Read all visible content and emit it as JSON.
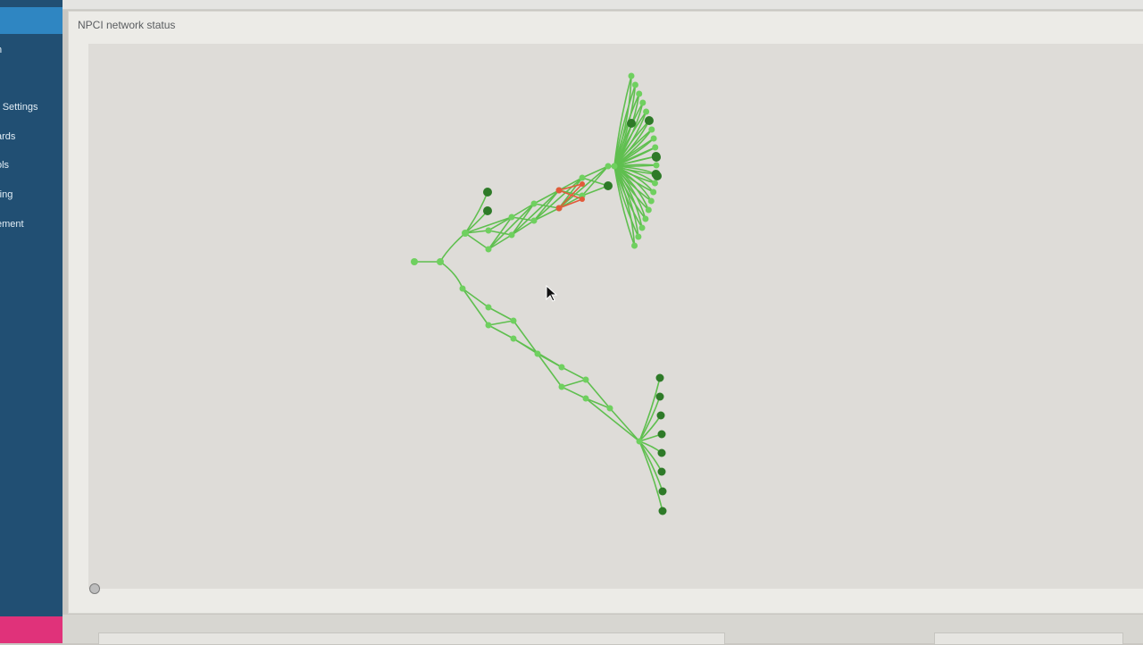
{
  "sidebar": {
    "items": [
      {
        "label": "n"
      },
      {
        "label": "r Settings"
      },
      {
        "label": "ards"
      },
      {
        "label": "ols"
      },
      {
        "label": "ring"
      },
      {
        "label": "ement"
      }
    ]
  },
  "panel": {
    "title": "NPCI network status"
  },
  "graph": {
    "colors": {
      "edge": "#5fbf4f",
      "node_light": "#6fd05f",
      "node_dark": "#2e7a28",
      "alert": "#e25a3a"
    }
  }
}
